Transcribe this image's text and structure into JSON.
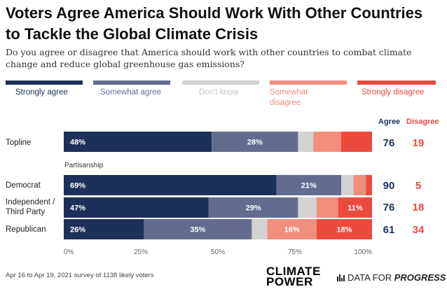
{
  "title": "Voters Agree America Should Work With Other Countries to Tackle the Global Climate Crisis",
  "subtitle": "Do you agree or disagree that America should work with other countries to combat climate change and reduce global greenhouse gas emissions?",
  "colors": {
    "strongly_agree": "#1c3159",
    "somewhat_agree": "#636c8f",
    "dont_know": "#d2d2d2",
    "somewhat_disagree": "#f28e7e",
    "strongly_disagree": "#ed4a3e"
  },
  "legend": [
    {
      "label": "Strongly agree",
      "color": "#1c3159"
    },
    {
      "label": "Somewhat agree",
      "color": "#636c8f"
    },
    {
      "label": "Don't know",
      "color": "#d2d2d2"
    },
    {
      "label": "Somewhat disagree",
      "color": "#f28e7e"
    },
    {
      "label": "Strongly disagree",
      "color": "#ed4a3e"
    }
  ],
  "columns": {
    "agree": "Agree",
    "disagree": "Disagree"
  },
  "section_label": "Partisanship",
  "rows": [
    {
      "label": "Topline",
      "agree": "76",
      "disagree": "19"
    },
    {
      "label": "Democrat",
      "agree": "90",
      "disagree": "5"
    },
    {
      "label": "Independent / Third Party",
      "agree": "76",
      "disagree": "18"
    },
    {
      "label": "Republican",
      "agree": "61",
      "disagree": "34"
    }
  ],
  "chart_data": {
    "type": "bar",
    "orientation": "horizontal",
    "stacked": true,
    "categories": [
      "Topline",
      "Democrat",
      "Independent / Third Party",
      "Republican"
    ],
    "series": [
      {
        "name": "Strongly agree",
        "values": [
          48,
          69,
          47,
          26
        ],
        "labels": [
          "48%",
          "69%",
          "47%",
          "26%"
        ]
      },
      {
        "name": "Somewhat agree",
        "values": [
          28,
          21,
          29,
          35
        ],
        "labels": [
          "28%",
          "21%",
          "29%",
          "35%"
        ]
      },
      {
        "name": "Don't know",
        "values": [
          5,
          4,
          6,
          5
        ],
        "labels": [
          "",
          "",
          "",
          ""
        ]
      },
      {
        "name": "Somewhat disagree",
        "values": [
          9,
          4,
          7,
          16
        ],
        "labels": [
          "",
          "",
          "",
          "16%"
        ]
      },
      {
        "name": "Strongly disagree",
        "values": [
          10,
          2,
          11,
          18
        ],
        "labels": [
          "",
          "",
          "11%",
          "18%"
        ]
      }
    ],
    "xlim": [
      0,
      100
    ],
    "xticks": [
      "0%",
      "25%",
      "50%",
      "75%",
      "100%"
    ],
    "legend_position": "top"
  },
  "footer": "Apr 16 to Apr 19, 2021 survey of 1138 likely voters",
  "logos": {
    "climate_power_line1": "CLIMATE",
    "climate_power_line2": "POWER",
    "dfp_prefix": "DATA FOR ",
    "dfp_emph": "PROGRESS"
  }
}
